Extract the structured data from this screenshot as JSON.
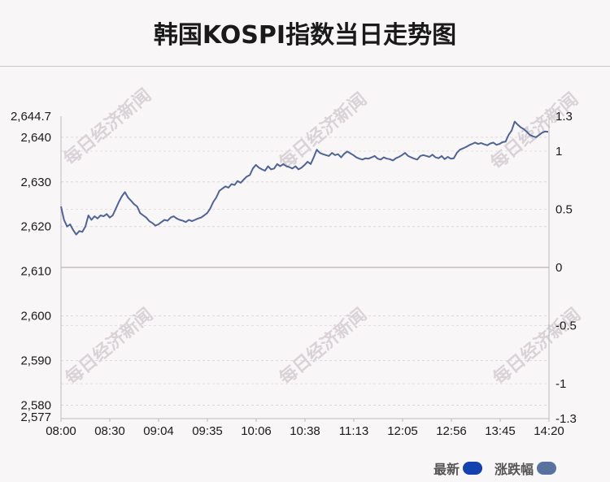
{
  "title": "韩国KOSPI指数当日走势图",
  "watermark_text": "每日经济新闻",
  "legend": {
    "items": [
      {
        "label": "最新",
        "color": "#1540b0"
      },
      {
        "label": "涨跌幅",
        "color": "#5a72a0"
      }
    ]
  },
  "chart_data": {
    "type": "line",
    "line_color": "#4f6494",
    "x_ticks": [
      "08:00",
      "08:30",
      "09:04",
      "09:35",
      "10:06",
      "10:38",
      "11:13",
      "12:05",
      "12:56",
      "13:45",
      "14:20"
    ],
    "y_left": {
      "ylim": [
        2577,
        2644.7
      ],
      "ticks": [
        2644.7,
        2640,
        2630,
        2620,
        2610,
        2600,
        2590,
        2580,
        2577
      ],
      "tick_labels": [
        "2,644.7",
        "2,640",
        "2,630",
        "2,620",
        "2,610",
        "2,600",
        "2,590",
        "2,580",
        "2,577"
      ]
    },
    "y_right": {
      "ylim": [
        -1.3,
        1.3
      ],
      "ticks": [
        1.3,
        1,
        0.5,
        0,
        -0.5,
        -1,
        -1.3
      ],
      "tick_labels": [
        "1.3",
        "1",
        "0.5",
        "0",
        "-0.5",
        "-1",
        "-1.3"
      ]
    },
    "zero_value": 2610.8,
    "grid": true,
    "series": [
      {
        "values": [
          2624.5,
          2621.5,
          2620,
          2620.5,
          2619.2,
          2618.2,
          2619,
          2618.8,
          2620,
          2622.5,
          2621.5,
          2622.3,
          2621.8,
          2622.5,
          2622.3,
          2622.8,
          2622,
          2622.5,
          2624,
          2625.5,
          2626.8,
          2627.7,
          2626.5,
          2625.8,
          2625,
          2624.5,
          2623,
          2622.5,
          2622,
          2621.2,
          2620.8,
          2620.2,
          2620.5,
          2621,
          2621.5,
          2621.3,
          2622,
          2622.3,
          2621.8,
          2621.5,
          2621.3,
          2621,
          2621.5,
          2621.2,
          2621.5,
          2621.8,
          2622,
          2622.5,
          2623,
          2624,
          2625.5,
          2626.5,
          2628,
          2628.5,
          2629,
          2628.7,
          2629.5,
          2629.3,
          2630.2,
          2629.8,
          2630.5,
          2631.2,
          2631.5,
          2633,
          2633.8,
          2633.2,
          2632.8,
          2632.5,
          2633.5,
          2632.8,
          2633,
          2634,
          2633.5,
          2634,
          2633.5,
          2633.3,
          2633,
          2633.5,
          2632.8,
          2633.2,
          2633.8,
          2634.5,
          2634,
          2635.5,
          2637.2,
          2636.5,
          2636.2,
          2636,
          2635.8,
          2636.5,
          2636,
          2636.2,
          2635.5,
          2636.3,
          2636.8,
          2636.4,
          2636,
          2635.5,
          2635.2,
          2635,
          2635.3,
          2635.2,
          2635.5,
          2635.8,
          2635.2,
          2635,
          2635.5,
          2635.2,
          2635.1,
          2634.8,
          2635.3,
          2635.6,
          2636,
          2636.5,
          2635.8,
          2635.5,
          2635.2,
          2635,
          2635.8,
          2636,
          2635.8,
          2635.6,
          2636.1,
          2635.5,
          2635.3,
          2635.8,
          2635.1,
          2635.6,
          2635.2,
          2635.3,
          2636.5,
          2637.2,
          2637.5,
          2637.8,
          2638.2,
          2638.5,
          2638.8,
          2638.5,
          2638.7,
          2638.4,
          2638.2,
          2638.6,
          2638.8,
          2638.3,
          2638.5,
          2638.9,
          2639,
          2640.5,
          2641.5,
          2643.5,
          2642.8,
          2642.2,
          2641.8,
          2641.2,
          2640.5,
          2640.2,
          2640,
          2640.5,
          2641,
          2641.3,
          2641.2
        ]
      }
    ]
  },
  "axis_labels": {
    "xlabel": "",
    "ylabel": ""
  }
}
